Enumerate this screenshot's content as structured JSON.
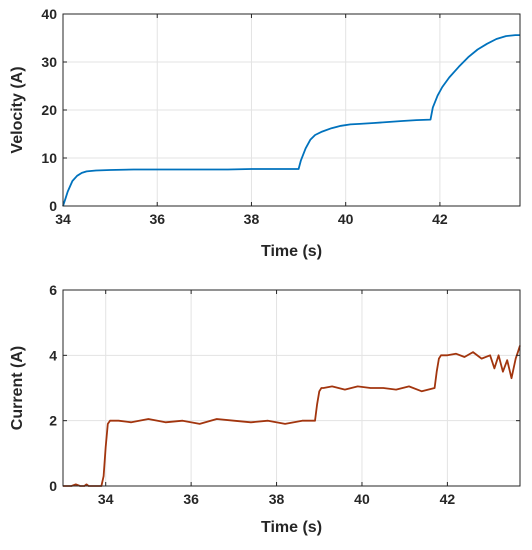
{
  "chart_data": [
    {
      "type": "line",
      "xlabel": "Time (s)",
      "ylabel": "Velocity (A)",
      "xlim": [
        34,
        43.7
      ],
      "ylim": [
        0,
        40
      ],
      "xticks": [
        34,
        36,
        38,
        40,
        42
      ],
      "yticks": [
        0,
        10,
        20,
        30,
        40
      ],
      "grid": true,
      "series": [
        {
          "color": "#0072BD",
          "x": [
            34.0,
            34.05,
            34.1,
            34.2,
            34.3,
            34.4,
            34.5,
            34.7,
            35.0,
            35.5,
            36.0,
            36.5,
            37.0,
            37.5,
            38.0,
            38.5,
            39.0,
            39.05,
            39.15,
            39.25,
            39.35,
            39.5,
            39.7,
            39.9,
            40.1,
            40.3,
            40.6,
            40.9,
            41.2,
            41.5,
            41.8,
            41.85,
            41.95,
            42.05,
            42.2,
            42.4,
            42.6,
            42.8,
            43.0,
            43.2,
            43.4,
            43.6,
            43.7
          ],
          "y": [
            0.0,
            1.5,
            3.0,
            5.2,
            6.3,
            6.9,
            7.2,
            7.4,
            7.5,
            7.6,
            7.6,
            7.6,
            7.6,
            7.6,
            7.7,
            7.7,
            7.7,
            9.5,
            12.0,
            13.8,
            14.8,
            15.5,
            16.2,
            16.7,
            17.0,
            17.1,
            17.3,
            17.5,
            17.7,
            17.9,
            18.0,
            20.5,
            23.0,
            24.8,
            26.8,
            29.0,
            31.0,
            32.6,
            33.8,
            34.8,
            35.4,
            35.6,
            35.6
          ]
        }
      ]
    },
    {
      "type": "line",
      "xlabel": "Time (s)",
      "ylabel": "Current (A)",
      "xlim": [
        33,
        43.7
      ],
      "ylim": [
        0,
        6
      ],
      "xticks": [
        34,
        36,
        38,
        40,
        42
      ],
      "yticks": [
        0,
        2,
        4,
        6
      ],
      "grid": true,
      "series": [
        {
          "color": "#A2350E",
          "x": [
            33.0,
            33.2,
            33.3,
            33.4,
            33.5,
            33.55,
            33.6,
            33.7,
            33.8,
            33.9,
            33.95,
            34.0,
            34.05,
            34.1,
            34.3,
            34.6,
            35.0,
            35.4,
            35.8,
            36.2,
            36.6,
            37.0,
            37.4,
            37.8,
            38.2,
            38.6,
            38.9,
            38.95,
            39.0,
            39.05,
            39.1,
            39.3,
            39.6,
            39.9,
            40.2,
            40.5,
            40.8,
            41.1,
            41.4,
            41.7,
            41.75,
            41.8,
            41.85,
            42.0,
            42.2,
            42.4,
            42.6,
            42.8,
            43.0,
            43.1,
            43.2,
            43.3,
            43.4,
            43.5,
            43.6,
            43.65,
            43.7
          ],
          "y": [
            0.0,
            0.0,
            0.05,
            0.0,
            0.0,
            0.05,
            0.0,
            0.0,
            0.0,
            0.0,
            0.3,
            1.2,
            1.9,
            2.0,
            2.0,
            1.95,
            2.05,
            1.95,
            2.0,
            1.9,
            2.05,
            2.0,
            1.95,
            2.0,
            1.9,
            2.0,
            2.0,
            2.5,
            2.9,
            3.0,
            3.0,
            3.05,
            2.95,
            3.05,
            3.0,
            3.0,
            2.95,
            3.05,
            2.9,
            3.0,
            3.5,
            3.9,
            4.0,
            4.0,
            4.05,
            3.95,
            4.1,
            3.9,
            4.0,
            3.6,
            4.0,
            3.5,
            3.85,
            3.3,
            3.9,
            4.1,
            4.3
          ]
        }
      ]
    }
  ]
}
